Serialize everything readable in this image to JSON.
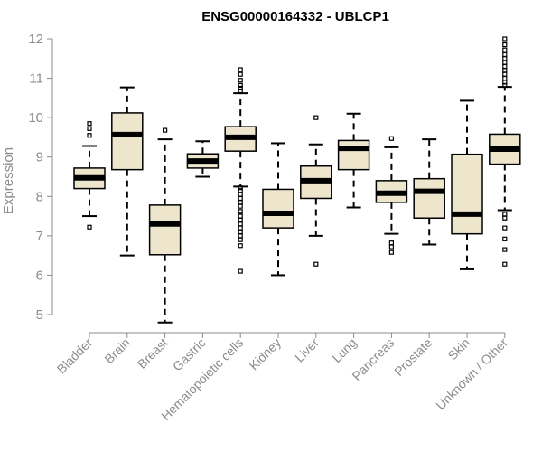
{
  "chart_data": {
    "type": "boxplot",
    "title": "ENSG00000164332 - UBLCP1",
    "ylabel": "Expression",
    "xlabel": "",
    "ylim": [
      4.75,
      12.1
    ],
    "yticks": [
      5,
      6,
      7,
      8,
      9,
      10,
      11,
      12
    ],
    "box_fill": "#ede5cc",
    "categories": [
      "Bladder",
      "Brain",
      "Breast",
      "Gastric",
      "Hematopoietic cells",
      "Kidney",
      "Liver",
      "Lung",
      "Pancreas",
      "Prostate",
      "Skin",
      "Unknown / Other"
    ],
    "boxes": [
      {
        "q1": 8.2,
        "median": 8.47,
        "q3": 8.72,
        "whisker_low": 7.5,
        "whisker_high": 9.28,
        "outliers": [
          9.85,
          9.72,
          9.55,
          7.22
        ]
      },
      {
        "q1": 8.68,
        "median": 9.57,
        "q3": 10.12,
        "whisker_low": 6.5,
        "whisker_high": 10.77,
        "outliers": []
      },
      {
        "q1": 6.52,
        "median": 7.3,
        "q3": 7.78,
        "whisker_low": 4.8,
        "whisker_high": 9.45,
        "outliers": [
          9.68
        ]
      },
      {
        "q1": 8.72,
        "median": 8.9,
        "q3": 9.08,
        "whisker_low": 8.5,
        "whisker_high": 9.4,
        "outliers": []
      },
      {
        "q1": 9.15,
        "median": 9.5,
        "q3": 9.77,
        "whisker_low": 8.25,
        "whisker_high": 10.62,
        "outliers": [
          11.22,
          11.1,
          10.95,
          10.82,
          10.75,
          10.68,
          8.22,
          8.15,
          8.05,
          7.95,
          7.85,
          7.75,
          7.62,
          7.5,
          7.4,
          7.3,
          7.2,
          7.1,
          7.0,
          6.9,
          6.75,
          6.1
        ]
      },
      {
        "q1": 7.2,
        "median": 7.57,
        "q3": 8.18,
        "whisker_low": 6.0,
        "whisker_high": 9.35,
        "outliers": []
      },
      {
        "q1": 7.95,
        "median": 8.4,
        "q3": 8.77,
        "whisker_low": 7.0,
        "whisker_high": 9.32,
        "outliers": [
          10.0,
          6.28
        ]
      },
      {
        "q1": 8.68,
        "median": 9.22,
        "q3": 9.42,
        "whisker_low": 7.72,
        "whisker_high": 10.1,
        "outliers": []
      },
      {
        "q1": 7.85,
        "median": 8.08,
        "q3": 8.4,
        "whisker_low": 7.05,
        "whisker_high": 9.25,
        "outliers": [
          9.47,
          6.82,
          6.72,
          6.58
        ]
      },
      {
        "q1": 7.45,
        "median": 8.13,
        "q3": 8.45,
        "whisker_low": 6.78,
        "whisker_high": 9.45,
        "outliers": []
      },
      {
        "q1": 7.05,
        "median": 7.55,
        "q3": 9.07,
        "whisker_low": 6.15,
        "whisker_high": 10.43,
        "outliers": []
      },
      {
        "q1": 8.82,
        "median": 9.2,
        "q3": 9.58,
        "whisker_low": 7.65,
        "whisker_high": 10.78,
        "outliers": [
          12.0,
          11.85,
          11.72,
          11.6,
          11.5,
          11.4,
          11.3,
          11.2,
          11.1,
          11.0,
          10.9,
          10.82,
          7.55,
          7.45,
          7.2,
          6.92,
          6.65,
          6.28
        ]
      }
    ]
  }
}
